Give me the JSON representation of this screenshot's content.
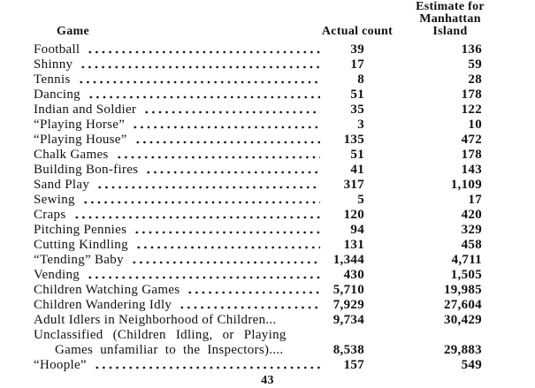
{
  "page": {
    "background": "#ffffff",
    "text_color": "#111111",
    "page_number": "43"
  },
  "table": {
    "headers": {
      "game": "Game",
      "actual": "Actual count",
      "estimate_lines": [
        "Estimate for",
        "Manhattan",
        "Island"
      ]
    },
    "rows": [
      {
        "game": "Football",
        "actual": "39",
        "estimate": "136"
      },
      {
        "game": "Shinny",
        "actual": "17",
        "estimate": "59"
      },
      {
        "game": "Tennis",
        "actual": "8",
        "estimate": "28"
      },
      {
        "game": "Dancing",
        "actual": "51",
        "estimate": "178"
      },
      {
        "game": "Indian and Soldier",
        "actual": "35",
        "estimate": "122"
      },
      {
        "game": "“Playing Horse”",
        "actual": "3",
        "estimate": "10"
      },
      {
        "game": "“Playing House”",
        "actual": "135",
        "estimate": "472"
      },
      {
        "game": "Chalk Games",
        "actual": "51",
        "estimate": "178"
      },
      {
        "game": "Building Bon-fires",
        "actual": "41",
        "estimate": "143"
      },
      {
        "game": "Sand Play",
        "actual": "317",
        "estimate": "1,109"
      },
      {
        "game": "Sewing",
        "actual": "5",
        "estimate": "17"
      },
      {
        "game": "Craps",
        "actual": "120",
        "estimate": "420"
      },
      {
        "game": "Pitching Pennies",
        "actual": "94",
        "estimate": "329"
      },
      {
        "game": "Cutting Kindling",
        "actual": "131",
        "estimate": "458"
      },
      {
        "game": "“Tending” Baby",
        "actual": "1,344",
        "estimate": "4,711"
      },
      {
        "game": "Vending",
        "actual": "430",
        "estimate": "1,505"
      },
      {
        "game": "Children Watching Games",
        "actual": "5,710",
        "estimate": "19,985"
      },
      {
        "game": "Children Wandering Idly",
        "actual": "7,929",
        "estimate": "27,604"
      },
      {
        "game": "Adult Idlers in Neighborhood of Children...",
        "actual": "9,734",
        "estimate": "30,429",
        "no_leader": true
      },
      {
        "game": "Unclassified (Children Idling, or Playing",
        "actual": "",
        "estimate": "",
        "no_leader": true,
        "ws": "wide"
      },
      {
        "game": "Games unfamiliar to the Inspectors)....",
        "actual": "8,538",
        "estimate": "29,883",
        "no_leader": true,
        "indent": true,
        "ws": "med"
      },
      {
        "game": "“Hoople”",
        "actual": "157",
        "estimate": "549"
      }
    ]
  }
}
